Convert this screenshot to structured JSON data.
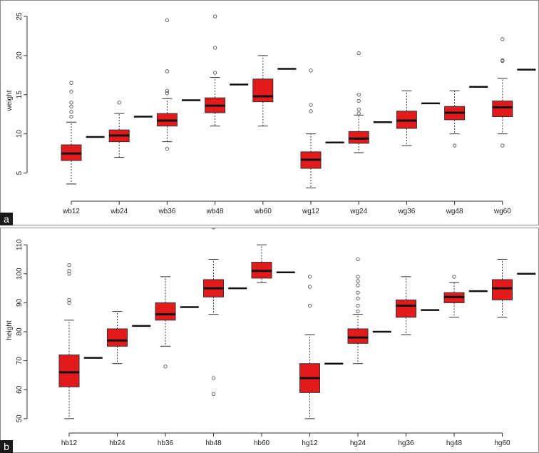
{
  "chart_data": [
    {
      "type": "box",
      "panel_label": "a",
      "ylabel": "weight",
      "ylim": [
        2.5,
        26
      ],
      "yticks": [
        5,
        10,
        15,
        20,
        25
      ],
      "box_color": "#e31a1c",
      "categories": [
        "wb12",
        "wb24",
        "wb36",
        "wb48",
        "wb60",
        "wg12",
        "wg24",
        "wg36",
        "wg48",
        "wg60"
      ],
      "boxes": [
        {
          "q1": 6.6,
          "median": 7.5,
          "q3": 8.6,
          "low": 3.6,
          "high": 11.5,
          "outliers": [
            12.2,
            12.8,
            13.5,
            14.0,
            15.4,
            16.5
          ]
        },
        {
          "q1": 9.0,
          "median": 9.8,
          "q3": 10.5,
          "low": 7.0,
          "high": 12.6,
          "outliers": [
            14.0
          ]
        },
        {
          "q1": 11.0,
          "median": 11.7,
          "q3": 12.6,
          "low": 9.0,
          "high": 14.5,
          "outliers": [
            8.1,
            15.2,
            15.5,
            18.0,
            24.5
          ]
        },
        {
          "q1": 12.7,
          "median": 13.6,
          "q3": 14.6,
          "low": 11.0,
          "high": 17.2,
          "outliers": [
            17.8,
            21.0,
            25.0
          ]
        },
        {
          "q1": 14.1,
          "median": 14.8,
          "q3": 17.0,
          "low": 11.0,
          "high": 20.0,
          "outliers": []
        },
        {
          "q1": 5.6,
          "median": 6.7,
          "q3": 7.7,
          "low": 3.1,
          "high": 10.0,
          "outliers": [
            12.9,
            13.7,
            18.1
          ]
        },
        {
          "q1": 8.8,
          "median": 9.4,
          "q3": 10.3,
          "low": 7.6,
          "high": 12.4,
          "outliers": [
            12.6,
            13.1,
            14.2,
            15.0,
            20.3
          ]
        },
        {
          "q1": 10.7,
          "median": 11.7,
          "q3": 12.9,
          "low": 8.5,
          "high": 15.5,
          "outliers": []
        },
        {
          "q1": 11.8,
          "median": 12.7,
          "q3": 13.5,
          "low": 10.0,
          "high": 15.5,
          "outliers": [
            8.5
          ]
        },
        {
          "q1": 12.2,
          "median": 13.4,
          "q3": 14.2,
          "low": 10.0,
          "high": 17.1,
          "outliers": [
            8.5,
            19.3,
            19.4,
            22.1
          ]
        }
      ],
      "reference_lines": [
        9.6,
        12.2,
        14.3,
        16.3,
        18.3,
        8.9,
        11.5,
        13.9,
        16.0,
        18.2
      ]
    },
    {
      "type": "box",
      "panel_label": "b",
      "ylabel": "height",
      "ylim": [
        48,
        113
      ],
      "yticks": [
        50,
        60,
        70,
        80,
        90,
        100,
        110
      ],
      "box_color": "#e31a1c",
      "categories": [
        "hb12",
        "hb24",
        "hb36",
        "hb48",
        "hb60",
        "hg12",
        "hg24",
        "hg36",
        "hg48",
        "hg60"
      ],
      "boxes": [
        {
          "q1": 61,
          "median": 66,
          "q3": 72,
          "low": 50,
          "high": 84,
          "outliers": [
            90,
            91,
            100,
            101,
            103
          ]
        },
        {
          "q1": 75,
          "median": 77,
          "q3": 81,
          "low": 69,
          "high": 87,
          "outliers": []
        },
        {
          "q1": 84,
          "median": 86,
          "q3": 90,
          "low": 75,
          "high": 99,
          "outliers": [
            68
          ]
        },
        {
          "q1": 92,
          "median": 95,
          "q3": 98,
          "low": 86,
          "high": 105,
          "outliers": [
            58.5,
            64,
            116
          ]
        },
        {
          "q1": 98.5,
          "median": 101,
          "q3": 104,
          "low": 97,
          "high": 110,
          "outliers": []
        },
        {
          "q1": 59,
          "median": 64,
          "q3": 69,
          "low": 50,
          "high": 79,
          "outliers": [
            89,
            95.5,
            99
          ]
        },
        {
          "q1": 76,
          "median": 78,
          "q3": 81,
          "low": 69,
          "high": 86,
          "outliers": [
            87,
            89,
            91.5,
            93.5,
            96,
            97.5,
            99,
            105
          ]
        },
        {
          "q1": 85,
          "median": 89,
          "q3": 91,
          "low": 79,
          "high": 99,
          "outliers": []
        },
        {
          "q1": 90,
          "median": 92,
          "q3": 93.5,
          "low": 85,
          "high": 97,
          "outliers": [
            99
          ]
        },
        {
          "q1": 91,
          "median": 95,
          "q3": 98,
          "low": 85,
          "high": 105,
          "outliers": []
        }
      ],
      "reference_lines": [
        71,
        82,
        88.5,
        95,
        100.5,
        69,
        80,
        87.5,
        94,
        100
      ]
    }
  ]
}
